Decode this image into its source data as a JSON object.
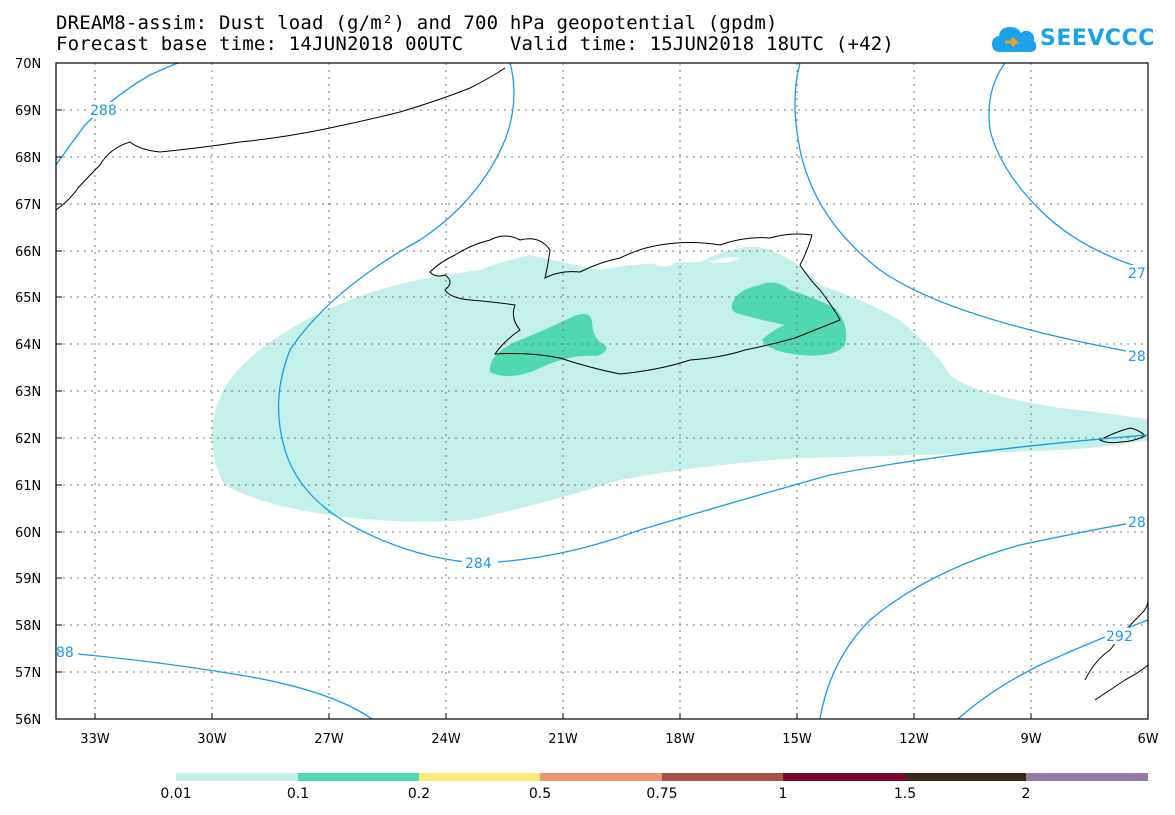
{
  "title": {
    "line1": "DREAM8-assim: Dust load (g/m²) and 700 hPa geopotential (gpdm)",
    "line2": "Forecast base time: 14JUN2018 00UTC    Valid time: 15JUN2018 18UTC (+42)"
  },
  "logo": {
    "text": "SEEVCCC",
    "icon": "cloud-icon"
  },
  "map": {
    "lon_range": [
      -34.5,
      -6
    ],
    "lat_range": [
      56,
      70
    ],
    "lat_labels": [
      "70N",
      "69N",
      "68N",
      "67N",
      "66N",
      "65N",
      "64N",
      "63N",
      "62N",
      "61N",
      "60N",
      "59N",
      "58N",
      "57N",
      "56N"
    ],
    "lon_labels": [
      "33W",
      "30W",
      "27W",
      "24W",
      "21W",
      "18W",
      "15W",
      "12W",
      "9W",
      "6W"
    ],
    "grid": "dotted",
    "colors": {
      "contour": "#1a9be8",
      "dust_light": "#c4f0ea",
      "dust_mid": "#50d8b0",
      "coast": "#000000"
    },
    "contour_labels": [
      "288",
      "284",
      "27",
      "28",
      "28",
      "292",
      "88"
    ]
  },
  "colorbar": {
    "ticks": [
      "0.01",
      "0.1",
      "0.2",
      "0.5",
      "0.75",
      "1",
      "1.5",
      "2"
    ],
    "colors": [
      "#c4f0ea",
      "#50d8b0",
      "#f8e97a",
      "#ea9470",
      "#a85245",
      "#7a0a2e",
      "#3a2818",
      "#957aa8"
    ]
  }
}
